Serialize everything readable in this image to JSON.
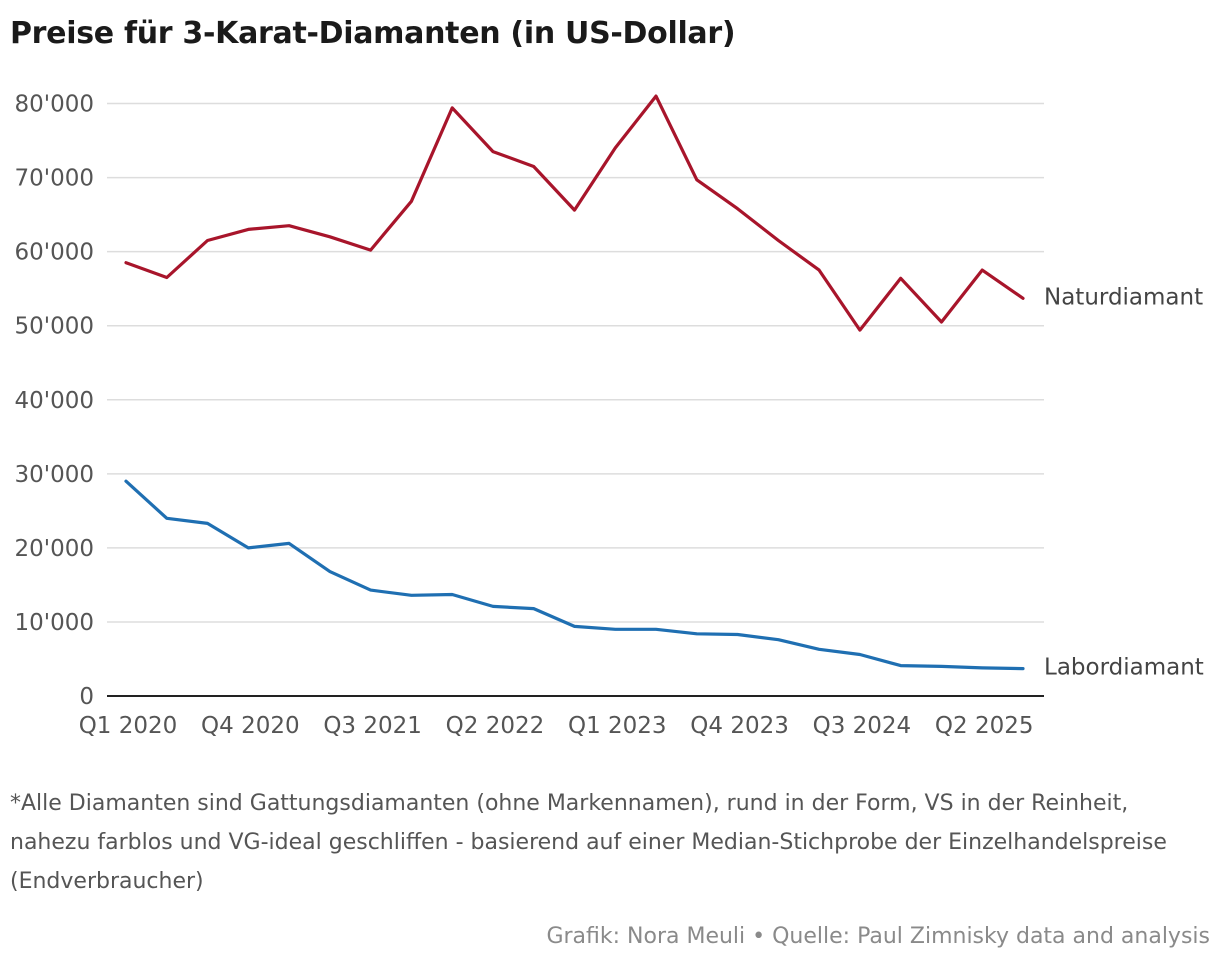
{
  "title": "Preise für 3-Karat-Diamanten (in US-Dollar)",
  "footnote": "*Alle Diamanten sind Gattungsdiamanten (ohne Markennamen), rund in der Form, VS in der Reinheit, nahezu farblos und VG-ideal geschliffen - basierend auf einer Median-Stichprobe der Einzelhandelspreise (Endverbraucher)",
  "credit": "Grafik: Nora Meuli • Quelle: Paul Zimnisky data and analysis",
  "colors": {
    "natur": "#a8152b",
    "labor": "#1f6fb2",
    "grid": "#dddddd",
    "axis": "#222222",
    "tick": "#555555"
  },
  "chart_data": {
    "type": "line",
    "title": "Preise für 3-Karat-Diamanten (in US-Dollar)",
    "xlabel": "",
    "ylabel": "",
    "x": [
      "Q1 2020",
      "Q2 2020",
      "Q3 2020",
      "Q4 2020",
      "Q1 2021",
      "Q2 2021",
      "Q3 2021",
      "Q4 2021",
      "Q1 2022",
      "Q2 2022",
      "Q3 2022",
      "Q4 2022",
      "Q1 2023",
      "Q2 2023",
      "Q3 2023",
      "Q4 2023",
      "Q1 2024",
      "Q2 2024",
      "Q3 2024",
      "Q4 2024",
      "Q1 2025",
      "Q2 2025",
      "Q3 2025"
    ],
    "x_tick_labels": [
      "Q1 2020",
      "Q4 2020",
      "Q3 2021",
      "Q2 2022",
      "Q1 2023",
      "Q4 2023",
      "Q3 2024",
      "Q2 2025"
    ],
    "x_tick_indices": [
      0,
      3,
      6,
      9,
      12,
      15,
      18,
      21
    ],
    "ylim": [
      0,
      80000
    ],
    "y_ticks": [
      0,
      10000,
      20000,
      30000,
      40000,
      50000,
      60000,
      70000,
      80000
    ],
    "y_tick_labels": [
      "0",
      "10'000",
      "20'000",
      "30'000",
      "40'000",
      "50'000",
      "60'000",
      "70'000",
      "80'000"
    ],
    "grid": true,
    "series": [
      {
        "name": "Naturdiamant",
        "color": "#a8152b",
        "values": [
          58500,
          56500,
          61500,
          63000,
          63500,
          62000,
          60200,
          66800,
          79400,
          73500,
          71500,
          65600,
          74000,
          81000,
          69700,
          65800,
          61500,
          57500,
          49400,
          56400,
          50500,
          57500,
          53700
        ]
      },
      {
        "name": "Labordiamant",
        "color": "#1f6fb2",
        "values": [
          29000,
          24000,
          23300,
          20000,
          20600,
          16800,
          14300,
          13600,
          13700,
          12100,
          11800,
          9400,
          9000,
          9000,
          8400,
          8300,
          7600,
          6300,
          5600,
          4100,
          4000,
          3800,
          3700
        ]
      }
    ]
  }
}
